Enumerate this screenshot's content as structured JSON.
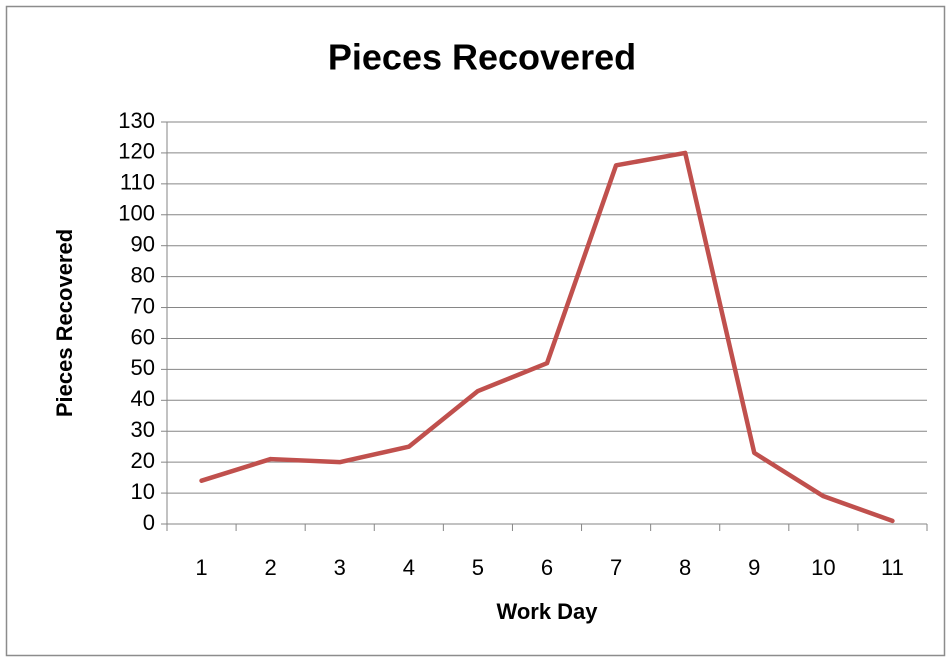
{
  "chart_data": {
    "type": "line",
    "title": "Pieces Recovered",
    "x_label": "Work Day",
    "y_label": "Pieces Recovered",
    "categories": [
      1,
      2,
      3,
      4,
      5,
      6,
      7,
      8,
      9,
      10,
      11
    ],
    "series": [
      {
        "name": "Pieces Recovered",
        "color": "#c0504d",
        "values": [
          14,
          21,
          20,
          25,
          43,
          52,
          116,
          120,
          23,
          9,
          1
        ]
      }
    ],
    "ylim": [
      0,
      130
    ],
    "yticks": [
      0,
      10,
      20,
      30,
      40,
      50,
      60,
      70,
      80,
      90,
      100,
      110,
      120,
      130
    ],
    "grid": true,
    "legend": false
  }
}
